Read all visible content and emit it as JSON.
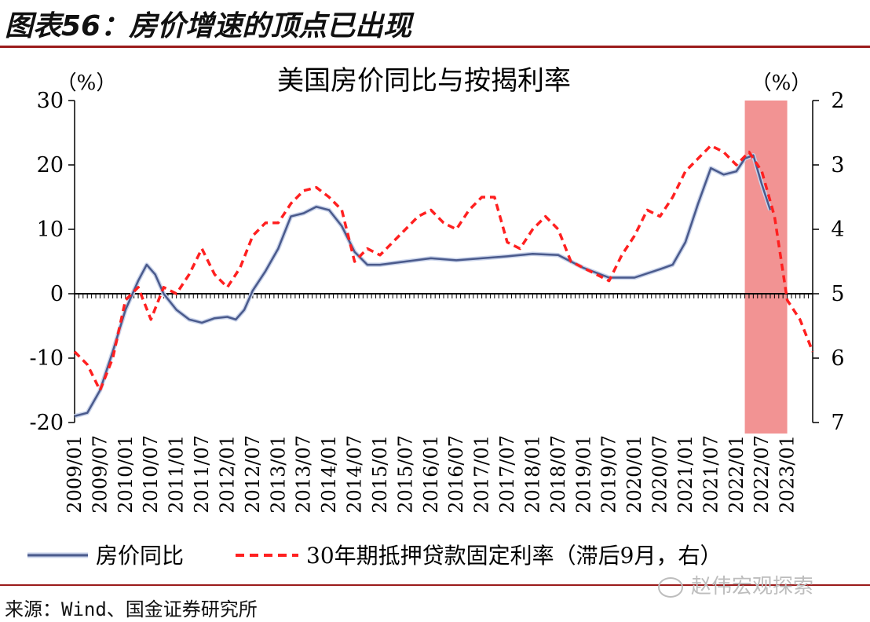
{
  "figure": {
    "label": "图表56：房价增速的顶点已出现",
    "source": "来源：Wind、国金证券研究所",
    "watermark": "赵伟宏观探索",
    "watermark_icon": "wechat-icon"
  },
  "chart_data": {
    "type": "line",
    "title": "美国房价同比与按揭利率",
    "left_unit": "（%）",
    "right_unit": "（%）",
    "left_axis": {
      "min": -20,
      "max": 30,
      "ticks": [
        -20,
        -10,
        0,
        10,
        20,
        30
      ]
    },
    "right_axis": {
      "min": 2,
      "max": 7,
      "inverted": true,
      "ticks": [
        2,
        3,
        4,
        5,
        6,
        7
      ]
    },
    "x_range": [
      "2009-01",
      "2023-07"
    ],
    "x_ticks": [
      "2009/01",
      "2009/07",
      "2010/01",
      "2010/07",
      "2011/01",
      "2011/07",
      "2012/01",
      "2012/07",
      "2013/01",
      "2013/07",
      "2014/01",
      "2014/07",
      "2015/01",
      "2015/07",
      "2016/01",
      "2016/07",
      "2017/01",
      "2017/07",
      "2018/01",
      "2018/07",
      "2019/01",
      "2019/07",
      "2020/01",
      "2020/07",
      "2021/01",
      "2021/07",
      "2022/01",
      "2022/07",
      "2023/01"
    ],
    "highlight": {
      "from": "2022-03",
      "to": "2023-01",
      "color": "#f08080"
    },
    "grid": false,
    "legend_position": "bottom",
    "series": [
      {
        "name": "房价同比",
        "axis": "left",
        "color": "#4a5a8c",
        "style": "solid",
        "points": [
          [
            "2009-01",
            -19.0
          ],
          [
            "2009-04",
            -18.5
          ],
          [
            "2009-07",
            -15.0
          ],
          [
            "2009-10",
            -9.0
          ],
          [
            "2010-01",
            -2.5
          ],
          [
            "2010-04",
            2.0
          ],
          [
            "2010-06",
            4.5
          ],
          [
            "2010-08",
            3.0
          ],
          [
            "2010-10",
            0.0
          ],
          [
            "2011-01",
            -2.5
          ],
          [
            "2011-04",
            -4.0
          ],
          [
            "2011-07",
            -4.5
          ],
          [
            "2011-10",
            -3.8
          ],
          [
            "2012-01",
            -3.6
          ],
          [
            "2012-03",
            -4.0
          ],
          [
            "2012-05",
            -2.5
          ],
          [
            "2012-07",
            0.5
          ],
          [
            "2012-10",
            3.5
          ],
          [
            "2013-01",
            7.0
          ],
          [
            "2013-04",
            12.0
          ],
          [
            "2013-07",
            12.5
          ],
          [
            "2013-10",
            13.5
          ],
          [
            "2014-01",
            13.0
          ],
          [
            "2014-04",
            10.5
          ],
          [
            "2014-07",
            6.5
          ],
          [
            "2014-10",
            4.5
          ],
          [
            "2015-01",
            4.5
          ],
          [
            "2015-07",
            5.0
          ],
          [
            "2016-01",
            5.5
          ],
          [
            "2016-07",
            5.2
          ],
          [
            "2017-01",
            5.5
          ],
          [
            "2017-07",
            5.8
          ],
          [
            "2018-01",
            6.2
          ],
          [
            "2018-07",
            6.0
          ],
          [
            "2019-01",
            4.0
          ],
          [
            "2019-07",
            2.5
          ],
          [
            "2020-01",
            2.5
          ],
          [
            "2020-07",
            3.8
          ],
          [
            "2020-10",
            4.5
          ],
          [
            "2021-01",
            8.0
          ],
          [
            "2021-04",
            14.0
          ],
          [
            "2021-07",
            19.5
          ],
          [
            "2021-10",
            18.5
          ],
          [
            "2022-01",
            19.0
          ],
          [
            "2022-03",
            21.0
          ],
          [
            "2022-05",
            21.5
          ],
          [
            "2022-07",
            17.0
          ],
          [
            "2022-09",
            13.0
          ]
        ]
      },
      {
        "name": "30年期抵押贷款固定利率（滞后9月，右）",
        "axis": "right",
        "color": "#ff2020",
        "style": "dashed",
        "points": [
          [
            "2009-01",
            5.9
          ],
          [
            "2009-04",
            6.1
          ],
          [
            "2009-07",
            6.5
          ],
          [
            "2009-10",
            6.0
          ],
          [
            "2010-01",
            5.1
          ],
          [
            "2010-04",
            4.9
          ],
          [
            "2010-07",
            5.4
          ],
          [
            "2010-10",
            4.9
          ],
          [
            "2011-01",
            5.0
          ],
          [
            "2011-04",
            4.7
          ],
          [
            "2011-07",
            4.3
          ],
          [
            "2011-10",
            4.7
          ],
          [
            "2012-01",
            4.9
          ],
          [
            "2012-04",
            4.6
          ],
          [
            "2012-07",
            4.1
          ],
          [
            "2012-10",
            3.9
          ],
          [
            "2013-01",
            3.9
          ],
          [
            "2013-04",
            3.6
          ],
          [
            "2013-07",
            3.4
          ],
          [
            "2013-10",
            3.35
          ],
          [
            "2014-01",
            3.5
          ],
          [
            "2014-04",
            3.7
          ],
          [
            "2014-07",
            4.5
          ],
          [
            "2014-10",
            4.3
          ],
          [
            "2015-01",
            4.4
          ],
          [
            "2015-04",
            4.2
          ],
          [
            "2015-07",
            4.0
          ],
          [
            "2015-10",
            3.8
          ],
          [
            "2016-01",
            3.7
          ],
          [
            "2016-04",
            3.9
          ],
          [
            "2016-07",
            4.0
          ],
          [
            "2016-10",
            3.7
          ],
          [
            "2017-01",
            3.5
          ],
          [
            "2017-04",
            3.5
          ],
          [
            "2017-07",
            4.2
          ],
          [
            "2017-10",
            4.3
          ],
          [
            "2018-01",
            4.0
          ],
          [
            "2018-04",
            3.8
          ],
          [
            "2018-07",
            4.0
          ],
          [
            "2018-10",
            4.5
          ],
          [
            "2019-01",
            4.6
          ],
          [
            "2019-04",
            4.7
          ],
          [
            "2019-07",
            4.8
          ],
          [
            "2019-10",
            4.4
          ],
          [
            "2020-01",
            4.1
          ],
          [
            "2020-04",
            3.7
          ],
          [
            "2020-07",
            3.8
          ],
          [
            "2020-10",
            3.5
          ],
          [
            "2021-01",
            3.1
          ],
          [
            "2021-04",
            2.9
          ],
          [
            "2021-07",
            2.7
          ],
          [
            "2021-10",
            2.8
          ],
          [
            "2022-01",
            3.0
          ],
          [
            "2022-04",
            2.8
          ],
          [
            "2022-07",
            3.1
          ],
          [
            "2022-10",
            3.8
          ],
          [
            "2023-01",
            5.1
          ],
          [
            "2023-04",
            5.4
          ],
          [
            "2023-07",
            5.9
          ]
        ]
      }
    ]
  }
}
